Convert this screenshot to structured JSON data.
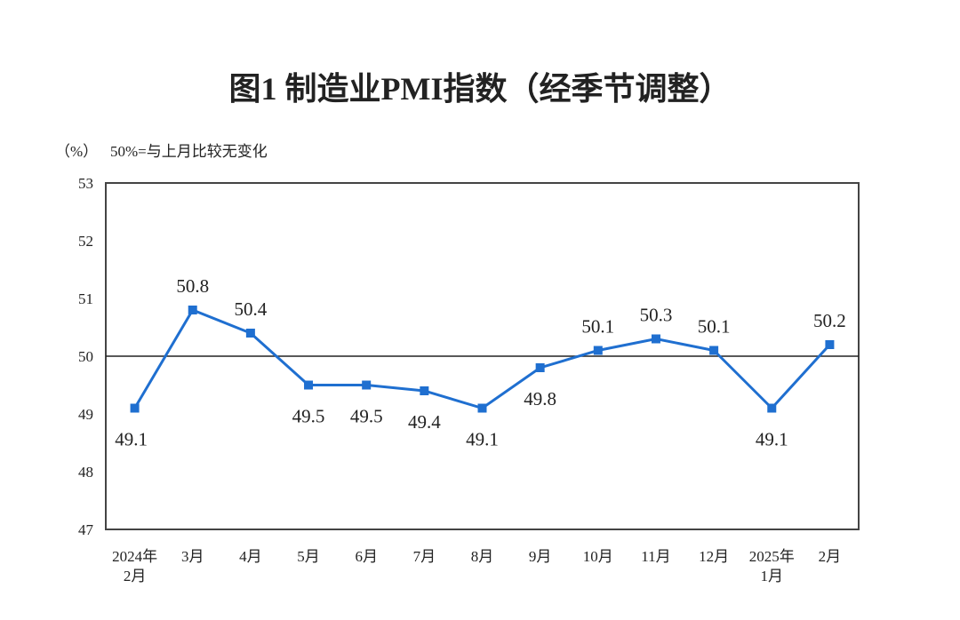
{
  "chart_data": {
    "type": "line",
    "title": "图1  制造业PMI指数（经季节调整）",
    "unit_label": "（%）",
    "note": "50%=与上月比较无变化",
    "categories": [
      [
        "2024年",
        "2月"
      ],
      [
        "3月"
      ],
      [
        "4月"
      ],
      [
        "5月"
      ],
      [
        "6月"
      ],
      [
        "7月"
      ],
      [
        "8月"
      ],
      [
        "9月"
      ],
      [
        "10月"
      ],
      [
        "11月"
      ],
      [
        "12月"
      ],
      [
        "2025年",
        "1月"
      ],
      [
        "2月"
      ]
    ],
    "values": [
      49.1,
      50.8,
      50.4,
      49.5,
      49.5,
      49.4,
      49.1,
      49.8,
      50.1,
      50.3,
      50.1,
      49.1,
      50.2
    ],
    "data_labels": [
      "49.1",
      "50.8",
      "50.4",
      "49.5",
      "49.5",
      "49.4",
      "49.1",
      "49.8",
      "50.1",
      "50.3",
      "50.1",
      "49.1",
      "50.2"
    ],
    "ylim": [
      47,
      53
    ],
    "yticks": [
      "47",
      "48",
      "49",
      "50",
      "51",
      "52",
      "53"
    ],
    "reference_line": 50,
    "grid": false,
    "line_color": "#1f6fd0"
  }
}
